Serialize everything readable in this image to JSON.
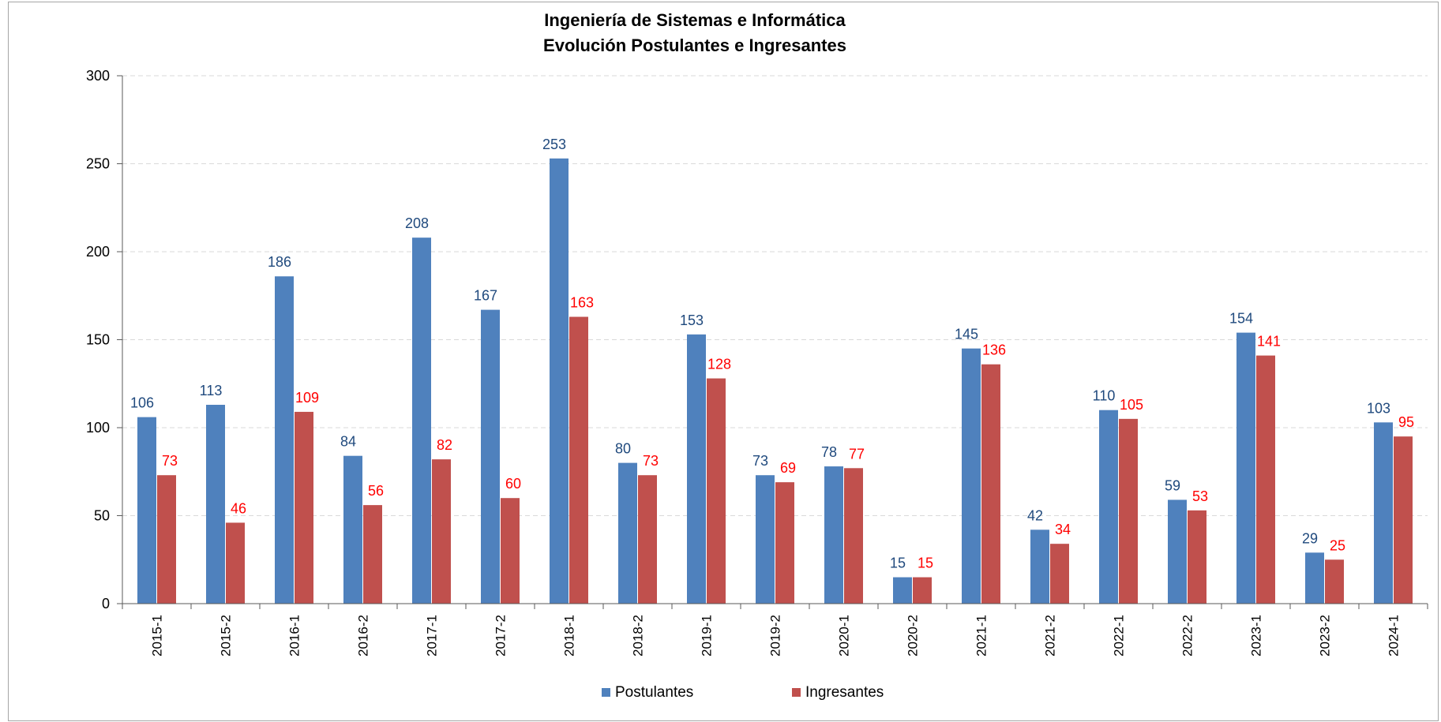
{
  "chart_data": {
    "type": "bar",
    "title_line1": "Ingeniería de Sistemas e Informática",
    "title_line2": "Evolución Postulantes e Ingresantes",
    "xlabel": "",
    "ylabel": "",
    "ylim": [
      0,
      300
    ],
    "yticks": [
      "0",
      "50",
      "100",
      "150",
      "200",
      "250",
      "300"
    ],
    "grid": true,
    "legend_position": "bottom-center",
    "categories": [
      "2015-1",
      "2015-2",
      "2016-1",
      "2016-2",
      "2017-1",
      "2017-2",
      "2018-1",
      "2018-2",
      "2019-1",
      "2019-2",
      "2020-1",
      "2020-2",
      "2021-1",
      "2021-2",
      "2022-1",
      "2022-2",
      "2023-1",
      "2023-2",
      "2024-1"
    ],
    "series": [
      {
        "name": "Postulantes",
        "color": "#4f81bd",
        "label_color": "#1f497d",
        "values": [
          106,
          113,
          186,
          84,
          208,
          167,
          253,
          80,
          153,
          73,
          78,
          15,
          145,
          42,
          110,
          59,
          154,
          29,
          103
        ]
      },
      {
        "name": "Ingresantes",
        "color": "#c0504d",
        "label_color": "#ff0000",
        "values": [
          73,
          46,
          109,
          56,
          82,
          60,
          163,
          73,
          128,
          69,
          77,
          15,
          136,
          34,
          105,
          53,
          141,
          25,
          95
        ]
      }
    ]
  }
}
